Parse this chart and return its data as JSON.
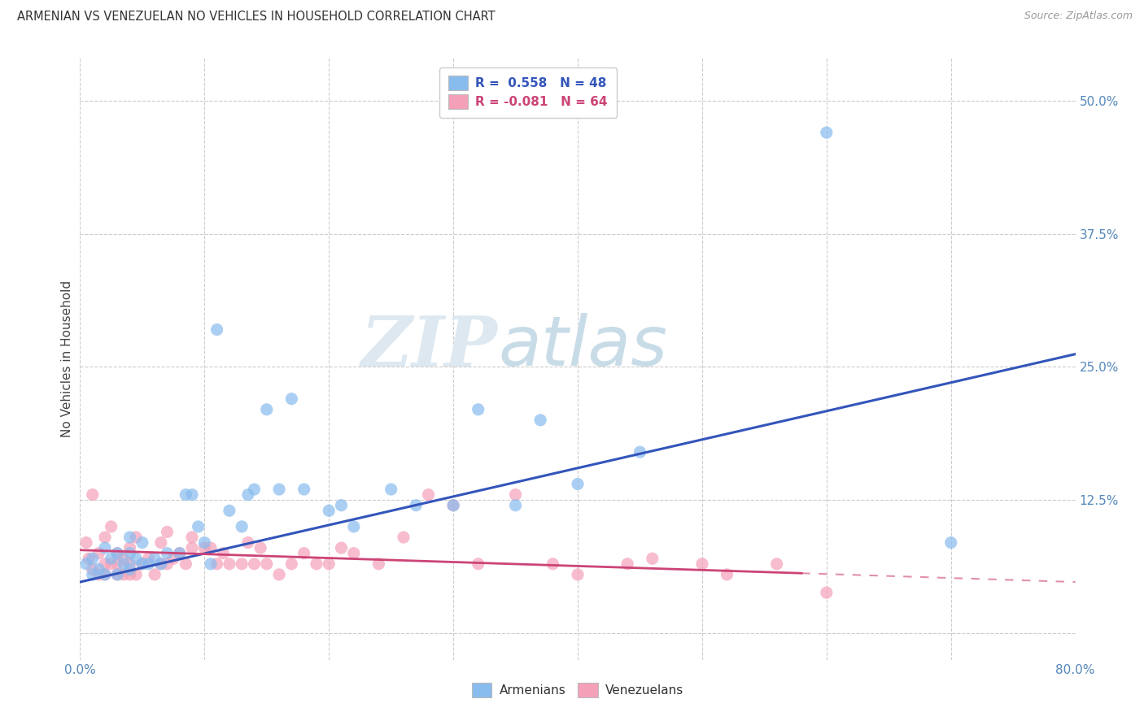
{
  "title": "ARMENIAN VS VENEZUELAN NO VEHICLES IN HOUSEHOLD CORRELATION CHART",
  "source": "Source: ZipAtlas.com",
  "ylabel": "No Vehicles in Household",
  "xlim": [
    0.0,
    0.8
  ],
  "ylim": [
    -0.025,
    0.54
  ],
  "xtick_positions": [
    0.0,
    0.1,
    0.2,
    0.3,
    0.4,
    0.5,
    0.6,
    0.7,
    0.8
  ],
  "xticklabels": [
    "0.0%",
    "",
    "",
    "",
    "",
    "",
    "",
    "",
    "80.0%"
  ],
  "ytick_positions": [
    0.0,
    0.125,
    0.25,
    0.375,
    0.5
  ],
  "yticklabels_right": [
    "",
    "12.5%",
    "25.0%",
    "37.5%",
    "50.0%"
  ],
  "armenian_color": "#88bbee",
  "venezuelan_color": "#f4a0b8",
  "armenian_line_color": "#3355bb",
  "venezuelan_line_color": "#cc4477",
  "legend_armenian_label": "R =  0.558   N = 48",
  "legend_venezuelan_label": "R = -0.081   N = 64",
  "bottom_legend_armenians": "Armenians",
  "bottom_legend_venezuelans": "Venezuelans",
  "armenian_line_x": [
    0.0,
    0.8
  ],
  "armenian_line_y": [
    0.048,
    0.262
  ],
  "venezuelan_line_x": [
    0.0,
    0.8
  ],
  "venezuelan_line_y": [
    0.078,
    0.048
  ],
  "armenian_scatter_x": [
    0.005,
    0.01,
    0.01,
    0.015,
    0.02,
    0.02,
    0.025,
    0.03,
    0.03,
    0.035,
    0.04,
    0.04,
    0.04,
    0.045,
    0.05,
    0.05,
    0.055,
    0.06,
    0.065,
    0.07,
    0.08,
    0.085,
    0.09,
    0.095,
    0.1,
    0.105,
    0.11,
    0.12,
    0.13,
    0.135,
    0.14,
    0.15,
    0.16,
    0.17,
    0.18,
    0.2,
    0.21,
    0.22,
    0.25,
    0.27,
    0.3,
    0.32,
    0.35,
    0.37,
    0.4,
    0.45,
    0.6,
    0.7
  ],
  "armenian_scatter_y": [
    0.065,
    0.055,
    0.07,
    0.06,
    0.055,
    0.08,
    0.07,
    0.055,
    0.075,
    0.065,
    0.06,
    0.075,
    0.09,
    0.07,
    0.065,
    0.085,
    0.065,
    0.07,
    0.065,
    0.075,
    0.075,
    0.13,
    0.13,
    0.1,
    0.085,
    0.065,
    0.285,
    0.115,
    0.1,
    0.13,
    0.135,
    0.21,
    0.135,
    0.22,
    0.135,
    0.115,
    0.12,
    0.1,
    0.135,
    0.12,
    0.12,
    0.21,
    0.12,
    0.2,
    0.14,
    0.17,
    0.47,
    0.085
  ],
  "venezuelan_scatter_x": [
    0.005,
    0.007,
    0.01,
    0.01,
    0.015,
    0.015,
    0.02,
    0.02,
    0.02,
    0.025,
    0.025,
    0.03,
    0.03,
    0.03,
    0.035,
    0.035,
    0.04,
    0.04,
    0.04,
    0.045,
    0.045,
    0.05,
    0.055,
    0.06,
    0.065,
    0.065,
    0.07,
    0.07,
    0.075,
    0.08,
    0.085,
    0.09,
    0.09,
    0.1,
    0.105,
    0.11,
    0.115,
    0.12,
    0.13,
    0.135,
    0.14,
    0.145,
    0.15,
    0.16,
    0.17,
    0.18,
    0.19,
    0.2,
    0.21,
    0.22,
    0.24,
    0.26,
    0.28,
    0.3,
    0.32,
    0.35,
    0.38,
    0.4,
    0.44,
    0.46,
    0.5,
    0.52,
    0.56,
    0.6
  ],
  "venezuelan_scatter_y": [
    0.085,
    0.07,
    0.06,
    0.13,
    0.055,
    0.075,
    0.055,
    0.065,
    0.09,
    0.065,
    0.1,
    0.055,
    0.065,
    0.075,
    0.055,
    0.07,
    0.055,
    0.065,
    0.08,
    0.055,
    0.09,
    0.065,
    0.07,
    0.055,
    0.065,
    0.085,
    0.065,
    0.095,
    0.07,
    0.075,
    0.065,
    0.08,
    0.09,
    0.08,
    0.08,
    0.065,
    0.075,
    0.065,
    0.065,
    0.085,
    0.065,
    0.08,
    0.065,
    0.055,
    0.065,
    0.075,
    0.065,
    0.065,
    0.08,
    0.075,
    0.065,
    0.09,
    0.13,
    0.12,
    0.065,
    0.13,
    0.065,
    0.055,
    0.065,
    0.07,
    0.065,
    0.055,
    0.065,
    0.038
  ],
  "watermark_zip": "ZIP",
  "watermark_atlas": "atlas",
  "background_color": "#ffffff",
  "grid_color": "#cccccc",
  "scatter_size": 120
}
